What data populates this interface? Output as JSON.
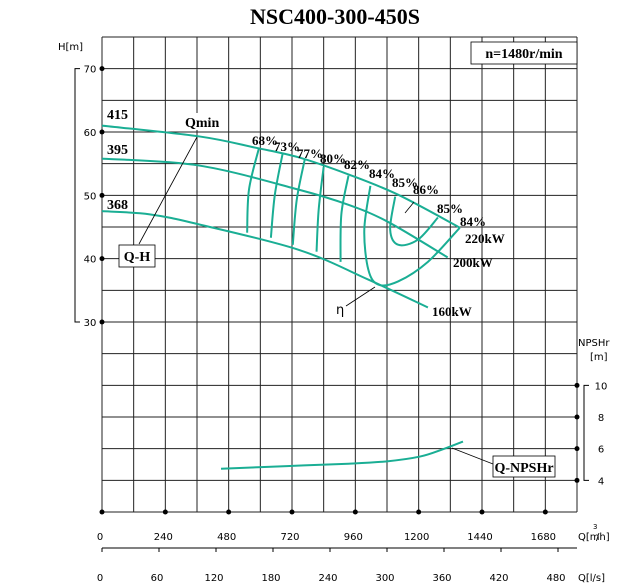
{
  "chart_data": {
    "type": "line",
    "title": "NSC400-300-450S",
    "speed_label": "n=1480r/min",
    "x_axis": {
      "label": "Q[m³/h]",
      "label_main": "Q[m",
      "label_sup": "3",
      "label_end": "/h]",
      "range": [
        0,
        1800
      ],
      "ticks": [
        0,
        240,
        480,
        720,
        960,
        1200,
        1440,
        1680
      ],
      "grid_step": 120
    },
    "x2_axis": {
      "label": "Q[l/s]",
      "range": [
        0,
        500
      ],
      "ticks": [
        0,
        60,
        120,
        180,
        240,
        300,
        360,
        420,
        480
      ]
    },
    "y_axis": {
      "label": "H[m]",
      "range": [
        30,
        70
      ],
      "ticks": [
        70,
        60,
        50,
        40,
        30
      ]
    },
    "y2_axis": {
      "label_line1": "NPSHr",
      "label_line2": "[m]",
      "range": [
        4,
        10
      ],
      "ticks": [
        10,
        8,
        6,
        4
      ]
    },
    "grid": true,
    "colors": {
      "curve": "#1aae94",
      "grid": "#222222"
    },
    "head_curves": [
      {
        "name": "415",
        "power_label": "220kW",
        "points": [
          [
            0,
            61.0
          ],
          [
            369,
            59.3
          ],
          [
            584,
            57.5
          ],
          [
            745,
            56.0
          ],
          [
            934,
            53.3
          ],
          [
            1122,
            50.1
          ],
          [
            1356,
            44.9
          ]
        ]
      },
      {
        "name": "395",
        "power_label": "200kW",
        "points": [
          [
            0,
            55.8
          ],
          [
            369,
            54.7
          ],
          [
            745,
            50.9
          ],
          [
            934,
            48.5
          ],
          [
            1084,
            45.8
          ],
          [
            1310,
            40.2
          ]
        ]
      },
      {
        "name": "368",
        "power_label": "160kW",
        "points": [
          [
            0,
            47.5
          ],
          [
            181,
            47.0
          ],
          [
            369,
            45.4
          ],
          [
            745,
            41.4
          ],
          [
            1009,
            36.7
          ],
          [
            1235,
            32.3
          ]
        ]
      }
    ],
    "efficiency_contours": [
      {
        "label": "68%",
        "points": [
          [
            595,
            57.5
          ],
          [
            557,
            50.9
          ],
          [
            550,
            44.1
          ]
        ]
      },
      {
        "label": "73%",
        "points": [
          [
            685,
            56.7
          ],
          [
            655,
            50.1
          ],
          [
            640,
            43.3
          ]
        ]
      },
      {
        "label": "77%",
        "points": [
          [
            768,
            55.6
          ],
          [
            738,
            49.3
          ],
          [
            723,
            42.2
          ]
        ]
      },
      {
        "label": "80%",
        "points": [
          [
            840,
            54.5
          ],
          [
            821,
            47.7
          ],
          [
            813,
            41.1
          ]
        ]
      },
      {
        "label": "82%",
        "points": [
          [
            934,
            53.1
          ],
          [
            907,
            47.0
          ],
          [
            904,
            39.5
          ]
        ]
      },
      {
        "label": "84%",
        "points": [
          [
            1017,
            51.5
          ],
          [
            994,
            44.6
          ],
          [
            1009,
            38.3
          ],
          [
            1047,
            35.9
          ],
          [
            1122,
            36.4
          ],
          [
            1235,
            39.5
          ],
          [
            1356,
            44.9
          ]
        ]
      },
      {
        "label": "85%",
        "points": [
          [
            1111,
            49.8
          ],
          [
            1092,
            44.6
          ],
          [
            1122,
            42.2
          ],
          [
            1197,
            43.0
          ],
          [
            1273,
            46.5
          ]
        ]
      }
    ],
    "efficiency_labels": [
      "68%",
      "73%",
      "77%",
      "80%",
      "82%",
      "84%",
      "85%",
      "86%",
      "85%",
      "84%"
    ],
    "npshr_curve": {
      "name": "Q-NPSHr",
      "points": [
        [
          451,
          4.73
        ],
        [
          700,
          4.9
        ],
        [
          934,
          5.05
        ],
        [
          1080,
          5.2
        ],
        [
          1205,
          5.5
        ],
        [
          1290,
          5.95
        ],
        [
          1368,
          6.45
        ]
      ]
    },
    "annotations": {
      "qmin": "Qmin",
      "qh": "Q-H",
      "eta": "η",
      "npshr": "Q-NPSHr"
    }
  }
}
